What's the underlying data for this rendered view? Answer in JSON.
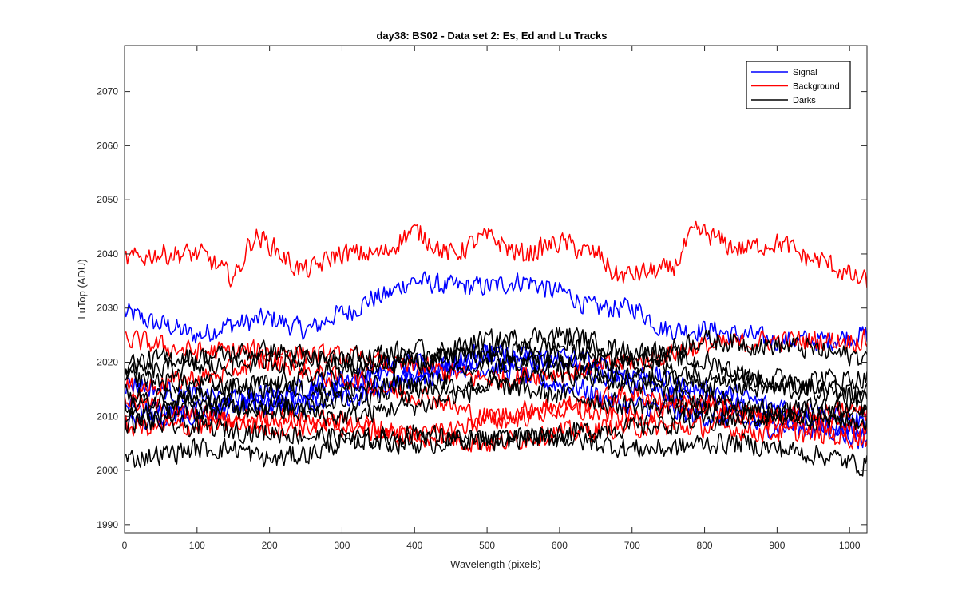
{
  "chart_data": {
    "type": "line",
    "title": "day38: BS02 - Data set 2: Es, Ed and Lu Tracks",
    "xlabel": "Wavelength (pixels)",
    "ylabel": "LuTop (ADU)",
    "xlim": [
      0,
      1024
    ],
    "ylim": [
      1988.5,
      2078.5
    ],
    "xticks": [
      0,
      100,
      200,
      300,
      400,
      500,
      600,
      700,
      800,
      900,
      1000
    ],
    "yticks": [
      1990,
      2000,
      2010,
      2020,
      2030,
      2040,
      2050,
      2060,
      2070
    ],
    "grid": false,
    "legend_location": "top-right",
    "legend": [
      {
        "name": "Signal",
        "color": "#0000ff"
      },
      {
        "name": "Background",
        "color": "#ff0000"
      },
      {
        "name": "Darks",
        "color": "#000000"
      }
    ],
    "noise_amplitude": 1.3,
    "series": [
      {
        "name": "Signal",
        "color": "#0000ff",
        "x": [
          0,
          50,
          100,
          150,
          200,
          250,
          300,
          350,
          400,
          450,
          500,
          550,
          600,
          650,
          700,
          750,
          800,
          850,
          900,
          950,
          1024
        ],
        "y": [
          2029,
          2027,
          2025,
          2027,
          2028,
          2026,
          2029,
          2032,
          2035,
          2034,
          2034,
          2035,
          2033,
          2030,
          2030,
          2026,
          2026,
          2025,
          2024,
          2024,
          2025
        ]
      },
      {
        "name": "Signal",
        "color": "#0000ff",
        "x": [
          0,
          100,
          200,
          300,
          400,
          500,
          600,
          700,
          800,
          900,
          1024
        ],
        "y": [
          2012,
          2010,
          2013,
          2015,
          2018,
          2022,
          2020,
          2016,
          2013,
          2010,
          2006
        ]
      },
      {
        "name": "Signal",
        "color": "#0000ff",
        "x": [
          0,
          100,
          200,
          300,
          400,
          500,
          600,
          700,
          800,
          900,
          1024
        ],
        "y": [
          2009,
          2011,
          2014,
          2017,
          2020,
          2019,
          2016,
          2012,
          2010,
          2008,
          2007
        ]
      },
      {
        "name": "Signal",
        "color": "#0000ff",
        "x": [
          0,
          100,
          200,
          300,
          400,
          500,
          600,
          700,
          800,
          900,
          1024
        ],
        "y": [
          2016,
          2014,
          2012,
          2013,
          2017,
          2021,
          2021,
          2018,
          2015,
          2012,
          2009
        ]
      },
      {
        "name": "Background",
        "color": "#ff0000",
        "x": [
          0,
          50,
          100,
          150,
          180,
          250,
          300,
          350,
          400,
          450,
          500,
          550,
          600,
          650,
          680,
          750,
          790,
          850,
          900,
          950,
          1024
        ],
        "y": [
          2039,
          2040,
          2040,
          2036,
          2043,
          2037,
          2040,
          2040,
          2044,
          2040,
          2043,
          2040,
          2042,
          2040,
          2036,
          2037,
          2044,
          2041,
          2042,
          2039,
          2035
        ]
      },
      {
        "name": "Background",
        "color": "#ff0000",
        "x": [
          0,
          100,
          200,
          300,
          400,
          500,
          600,
          700,
          800,
          900,
          1024
        ],
        "y": [
          2024,
          2022,
          2022,
          2021,
          2019,
          2017,
          2018,
          2020,
          2023,
          2024,
          2024
        ]
      },
      {
        "name": "Background",
        "color": "#ff0000",
        "x": [
          0,
          100,
          200,
          300,
          400,
          500,
          600,
          700,
          800,
          900,
          1024
        ],
        "y": [
          2013,
          2010,
          2008,
          2008,
          2006,
          2009,
          2011,
          2010,
          2012,
          2009,
          2008
        ]
      },
      {
        "name": "Background",
        "color": "#ff0000",
        "x": [
          0,
          100,
          200,
          300,
          400,
          500,
          600,
          700,
          800,
          900,
          1024
        ],
        "y": [
          2008,
          2008,
          2010,
          2009,
          2007,
          2005,
          2007,
          2008,
          2008,
          2007,
          2006
        ]
      },
      {
        "name": "Background",
        "color": "#ff0000",
        "x": [
          0,
          100,
          200,
          300,
          400,
          500,
          600,
          700,
          800,
          900,
          1024
        ],
        "y": [
          2015,
          2017,
          2020,
          2017,
          2014,
          2010,
          2012,
          2014,
          2012,
          2010,
          2011
        ]
      },
      {
        "name": "Darks",
        "color": "#000000",
        "x": [
          0,
          50,
          100,
          150,
          200,
          250,
          300,
          350,
          400,
          450,
          500,
          550,
          600,
          650,
          700,
          750,
          800,
          850,
          900,
          950,
          1024
        ],
        "y": [
          2002,
          2003,
          2004,
          2004,
          2002,
          2003,
          2005,
          2006,
          2007,
          2006,
          2005,
          2006,
          2006,
          2005,
          2004,
          2004,
          2005,
          2005,
          2004,
          2003,
          2001
        ]
      },
      {
        "name": "Darks",
        "color": "#000000",
        "x": [
          0,
          100,
          200,
          300,
          400,
          500,
          600,
          700,
          800,
          900,
          1024
        ],
        "y": [
          2020,
          2021,
          2022,
          2020,
          2020,
          2022,
          2023,
          2021,
          2024,
          2023,
          2021
        ]
      },
      {
        "name": "Darks",
        "color": "#000000",
        "x": [
          0,
          100,
          200,
          300,
          400,
          500,
          600,
          700,
          800,
          900,
          1024
        ],
        "y": [
          2012,
          2014,
          2016,
          2018,
          2020,
          2024,
          2025,
          2022,
          2020,
          2016,
          2014
        ]
      },
      {
        "name": "Darks",
        "color": "#000000",
        "x": [
          0,
          100,
          200,
          300,
          400,
          500,
          600,
          700,
          800,
          900,
          1024
        ],
        "y": [
          2017,
          2016,
          2015,
          2015,
          2016,
          2019,
          2021,
          2020,
          2018,
          2017,
          2017
        ]
      },
      {
        "name": "Darks",
        "color": "#000000",
        "x": [
          0,
          100,
          200,
          300,
          400,
          500,
          600,
          700,
          800,
          900,
          1024
        ],
        "y": [
          2010,
          2011,
          2012,
          2013,
          2015,
          2016,
          2014,
          2012,
          2011,
          2010,
          2009
        ]
      },
      {
        "name": "Darks",
        "color": "#000000",
        "x": [
          0,
          100,
          200,
          300,
          400,
          500,
          600,
          700,
          800,
          900,
          1024
        ],
        "y": [
          2014,
          2013,
          2011,
          2010,
          2012,
          2015,
          2018,
          2016,
          2013,
          2011,
          2012
        ]
      },
      {
        "name": "Darks",
        "color": "#000000",
        "x": [
          0,
          100,
          200,
          300,
          400,
          500,
          600,
          700,
          800,
          900,
          1024
        ],
        "y": [
          2018,
          2019,
          2020,
          2021,
          2022,
          2021,
          2019,
          2017,
          2016,
          2015,
          2014
        ]
      },
      {
        "name": "Darks",
        "color": "#000000",
        "x": [
          0,
          100,
          200,
          300,
          400,
          500,
          600,
          700,
          800,
          900,
          1024
        ],
        "y": [
          2009,
          2008,
          2007,
          2006,
          2005,
          2006,
          2007,
          2008,
          2009,
          2010,
          2011
        ]
      }
    ]
  }
}
